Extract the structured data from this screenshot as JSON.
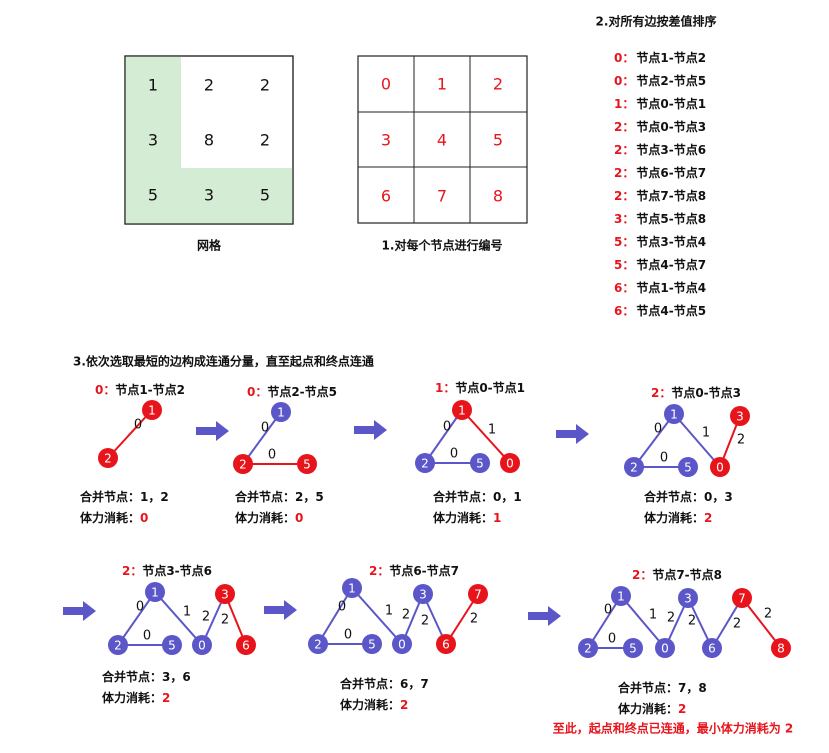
{
  "grid_caption": "网格",
  "grid_values": [
    "1",
    "2",
    "2",
    "3",
    "8",
    "2",
    "5",
    "3",
    "5"
  ],
  "numbering_caption": "1.对每个节点进行编号",
  "numbering_values": [
    "0",
    "1",
    "2",
    "3",
    "4",
    "5",
    "6",
    "7",
    "8"
  ],
  "sort_title": "2.对所有边按差值排序",
  "sorted_edges": [
    {
      "w": "0",
      "sep": "：",
      "edge": "节点1-节点2"
    },
    {
      "w": "0",
      "sep": "：",
      "edge": "节点2-节点5"
    },
    {
      "w": "1",
      "sep": "：",
      "edge": "节点0-节点1"
    },
    {
      "w": "2",
      "sep": "：",
      "edge": "节点0-节点3"
    },
    {
      "w": "2",
      "sep": "：",
      "edge": "节点3-节点6"
    },
    {
      "w": "2",
      "sep": "：",
      "edge": "节点6-节点7"
    },
    {
      "w": "2",
      "sep": "：",
      "edge": "节点7-节点8"
    },
    {
      "w": "3",
      "sep": "：",
      "edge": "节点5-节点8"
    },
    {
      "w": "5",
      "sep": "：",
      "edge": "节点3-节点4"
    },
    {
      "w": "5",
      "sep": "：",
      "edge": "节点4-节点7"
    },
    {
      "w": "6",
      "sep": "：",
      "edge": "节点1-节点4"
    },
    {
      "w": "6",
      "sep": "：",
      "edge": "节点4-节点5"
    }
  ],
  "step3_title": "3.依次选取最短的边构成连通分量，直至起点和终点连通",
  "merge_label": "合并节点：",
  "cost_label": "体力消耗：",
  "steps": [
    {
      "head_w": "0：",
      "head_edge": "节点1-节点2",
      "merge": "1，2",
      "cost": "0"
    },
    {
      "head_w": "0：",
      "head_edge": "节点2-节点5",
      "merge": "2，5",
      "cost": "0"
    },
    {
      "head_w": "1：",
      "head_edge": "节点0-节点1",
      "merge": "0，1",
      "cost": "1"
    },
    {
      "head_w": "2：",
      "head_edge": "节点0-节点3",
      "merge": "0，3",
      "cost": "2"
    },
    {
      "head_w": "2：",
      "head_edge": "节点3-节点6",
      "merge": "3，6",
      "cost": "2"
    },
    {
      "head_w": "2：",
      "head_edge": "节点6-节点7",
      "merge": "6，7",
      "cost": "2"
    },
    {
      "head_w": "2：",
      "head_edge": "节点7-节点8",
      "merge": "7，8",
      "cost": "2"
    }
  ],
  "conclusion": "至此，起点和终点已连通，最小体力消耗为 2",
  "colors": {
    "red": "#e8141c",
    "blue": "#5b57c8",
    "green": "#d4ebd4",
    "arrow": "#5b57c8"
  }
}
